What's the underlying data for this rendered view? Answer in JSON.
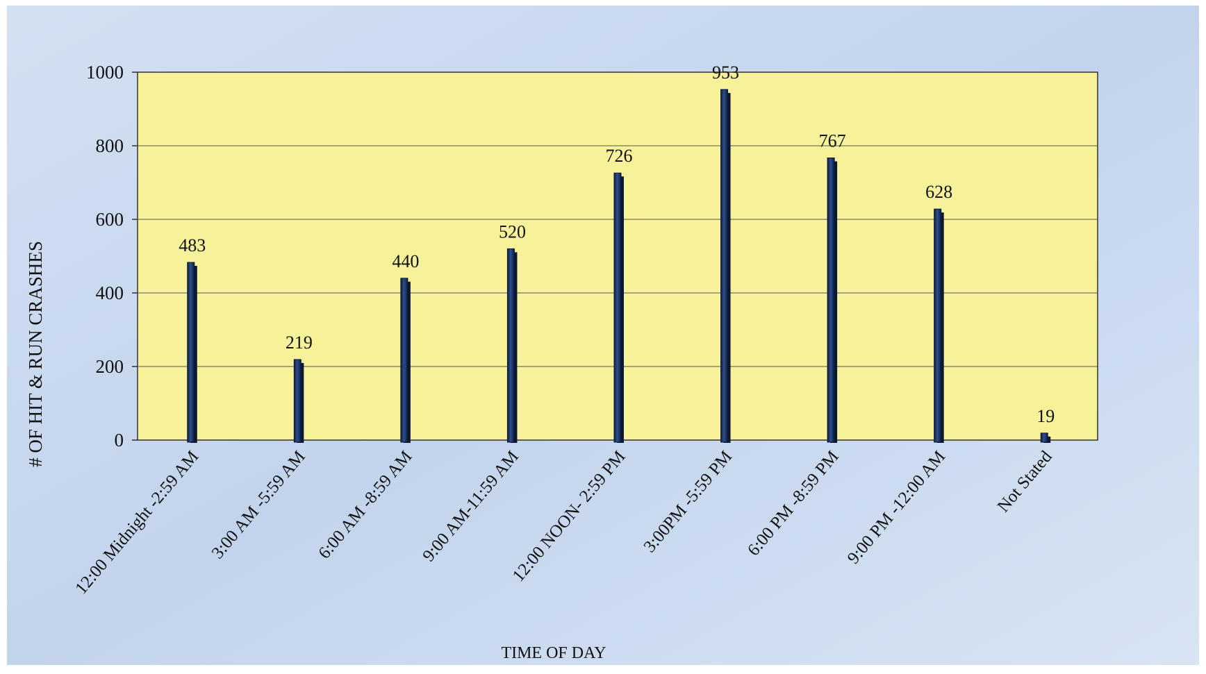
{
  "chart_data": {
    "type": "bar",
    "title": "",
    "xlabel": "TIME  OF DAY",
    "ylabel": "# OF HIT & RUN CRASHES",
    "categories": [
      "12:00 Midnight -2:59 AM",
      "3:00 AM -5:59 AM",
      "6:00 AM -8:59 AM",
      "9:00 AM-11:59 AM",
      "12:00 NOON- 2:59 PM",
      "3:00PM -5:59 PM",
      "6:00 PM -8:59 PM",
      "9:00 PM -12:00 AM",
      "Not Stated"
    ],
    "values": [
      483,
      219,
      440,
      520,
      726,
      953,
      767,
      628,
      19
    ],
    "data_labels": [
      "483",
      "219",
      "440",
      "520",
      "726",
      "953",
      "767",
      "628",
      "19"
    ],
    "yticks": [
      "0",
      "200",
      "400",
      "600",
      "800",
      "1000"
    ],
    "ylim": [
      0,
      1000
    ],
    "grid": true,
    "legend": "none",
    "colors": {
      "page_background": "#c9d9ee",
      "plot_background": "#f7f19a",
      "bar_fill": "#1f3566",
      "bar_edge": "#0c1833",
      "gridline": "#555555",
      "axis": "#333333"
    }
  }
}
